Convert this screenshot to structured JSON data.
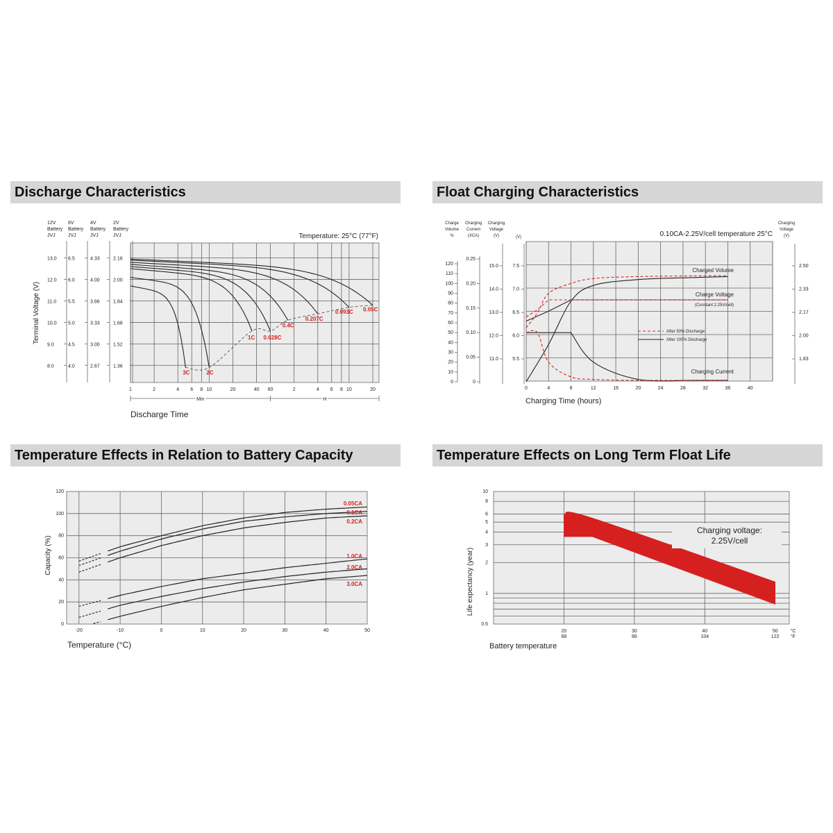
{
  "colors": {
    "grid_bg": "#ececec",
    "grid_line": "#666666",
    "curve": "#222222",
    "red": "#d61f1f",
    "header_bg": "#d6d6d6"
  },
  "discharge": {
    "title": "Discharge Characteristics",
    "chart_data": {
      "type": "line",
      "title": "Discharge Characteristics",
      "temperature_note": "Temperature: 25°C (77°F)",
      "ylabel": "Terminal Voltage (V)",
      "xlabel": "Discharge Time",
      "x_scale": "log",
      "x_unit_labels": {
        "min": "Min",
        "h": "H"
      },
      "x_ticks_min": [
        "1",
        "2",
        "4",
        "6",
        "8",
        "10",
        "20",
        "40",
        "60"
      ],
      "x_ticks_h": [
        "2",
        "4",
        "6",
        "8",
        "10",
        "20"
      ],
      "y_axes": [
        {
          "header": [
            "12V",
            "Battery",
            "JVJ"
          ],
          "ticks": [
            "13.0",
            "12.0",
            "11.0",
            "10.0",
            "9.0",
            "8.0"
          ]
        },
        {
          "header": [
            "6V",
            "Battery",
            "JVJ"
          ],
          "ticks": [
            "6.5",
            "6.0",
            "5.5",
            "5.0",
            "4.5",
            "4.0"
          ]
        },
        {
          "header": [
            "4V",
            "Battery",
            "JVJ"
          ],
          "ticks": [
            "4.33",
            "4.00",
            "3.66",
            "3.33",
            "3.00",
            "2.67"
          ]
        },
        {
          "header": [
            "2V",
            "Battery",
            "JVJ"
          ],
          "ticks": [
            "2.16",
            "2.00",
            "1.84",
            "1.68",
            "1.52",
            "1.36"
          ]
        }
      ],
      "series": [
        {
          "name": "3C",
          "end_minutes": 5,
          "start_v": 11.7,
          "cutoff_v": 7.9
        },
        {
          "name": "2C",
          "end_minutes": 10,
          "start_v": 12.1,
          "cutoff_v": 7.9
        },
        {
          "name": "1C",
          "end_minutes": 35,
          "start_v": 12.5,
          "cutoff_v": 9.6
        },
        {
          "name": "0.628C",
          "end_minutes": 60,
          "start_v": 12.6,
          "cutoff_v": 9.6
        },
        {
          "name": "0.4C",
          "end_minutes": 100,
          "start_v": 12.7,
          "cutoff_v": 10.1
        },
        {
          "name": "0.207C",
          "end_minutes": 240,
          "start_v": 12.8,
          "cutoff_v": 10.4
        },
        {
          "name": "0.093C",
          "end_minutes": 600,
          "start_v": 12.9,
          "cutoff_v": 10.7
        },
        {
          "name": "0.05C",
          "end_minutes": 1200,
          "start_v": 12.95,
          "cutoff_v": 10.8
        }
      ]
    }
  },
  "float_charging": {
    "title": "Float Charging Characteristics",
    "chart_data": {
      "type": "line",
      "title": "Float Charging Characteristics",
      "note": "0.10CA-2.25V/cell  temperature 25°C",
      "xlabel": "Charging Time (hours)",
      "x_ticks": [
        "0",
        "4",
        "8",
        "12",
        "16",
        "20",
        "24",
        "28",
        "32",
        "36",
        "40"
      ],
      "xlim": [
        0,
        44
      ],
      "axis_headers": {
        "charge_volume": [
          "Charge",
          "Volume",
          "%"
        ],
        "charging_current": [
          "Charging",
          "Current",
          "(XCA)"
        ],
        "charging_voltage": [
          "Charging",
          "Voltage",
          "(V)"
        ],
        "extra_v": "(V)",
        "right": [
          "Charging",
          "Voltage",
          "(V)"
        ]
      },
      "charge_volume_ticks": [
        "120",
        "110",
        "100",
        "90",
        "80",
        "70",
        "60",
        "50",
        "40",
        "30",
        "20",
        "10",
        "0"
      ],
      "current_ticks": [
        "0.25",
        "0.20",
        "0.15",
        "0.10",
        "0.05",
        "0"
      ],
      "voltage_ticks_12v": [
        "15.0",
        "14.0",
        "13.0",
        "12.0",
        "11.0"
      ],
      "voltage_ticks_6v": [
        "7.5",
        "7.0",
        "6.5",
        "6.0",
        "5.5"
      ],
      "right_ticks": [
        "2.50",
        "2.33",
        "2.17",
        "2.00",
        "1.83"
      ],
      "series_labels": {
        "charged_volume": "Charged Volume",
        "charge_voltage": "Charge Voltage",
        "constant": "(Constant 2.25V/cell)",
        "charging_current": "Charging Current"
      },
      "legend": [
        {
          "name": "After  50% Discharge",
          "style": "dashed-red"
        },
        {
          "name": "After 100% Discharge",
          "style": "solid-black"
        }
      ],
      "series": [
        {
          "name": "After 100% Discharge",
          "hours": [
            0,
            4,
            8,
            12,
            20,
            30,
            36
          ],
          "charged_volume_pct": [
            0,
            38,
            82,
            98,
            104,
            106,
            107
          ],
          "voltage_v_per_cell": [
            2.1,
            2.17,
            2.25,
            2.25,
            2.25,
            2.25,
            2.25
          ],
          "current_xca": [
            0.1,
            0.1,
            0.1,
            0.04,
            0.005,
            0.003,
            0.003
          ]
        },
        {
          "name": "After  50% Discharge",
          "hours": [
            0,
            2,
            4,
            8,
            12,
            20,
            36
          ],
          "charged_volume_pct": [
            55,
            70,
            90,
            100,
            105,
            107,
            108
          ],
          "voltage_v_per_cell": [
            2.13,
            2.18,
            2.25,
            2.25,
            2.25,
            2.25,
            2.25
          ],
          "current_xca": [
            0.1,
            0.1,
            0.04,
            0.01,
            0.005,
            0.003,
            0.003
          ]
        }
      ]
    }
  },
  "temp_capacity": {
    "title": "Temperature Effects in Relation to Battery Capacity",
    "chart_data": {
      "type": "line",
      "title": "Temperature Effects in Relation to Battery Capacity",
      "xlabel": "Temperature (°C)",
      "ylabel": "Capacity (%)",
      "xlim": [
        -20,
        50
      ],
      "ylim": [
        0,
        120
      ],
      "x_ticks": [
        "-20",
        "-10",
        "0",
        "10",
        "20",
        "30",
        "40",
        "50"
      ],
      "y_ticks": [
        "120",
        "100",
        "80",
        "60",
        "40",
        "20",
        "0"
      ],
      "x": [
        -20,
        -10,
        0,
        10,
        20,
        30,
        40,
        50
      ],
      "series": [
        {
          "name": "0.05CA",
          "values": [
            57,
            70,
            80,
            89,
            96,
            101,
            104,
            106
          ]
        },
        {
          "name": "0.1CA",
          "values": [
            53,
            66,
            77,
            86,
            93,
            97,
            100,
            102
          ]
        },
        {
          "name": "0.2CA",
          "values": [
            47,
            60,
            71,
            80,
            87,
            92,
            96,
            98
          ]
        },
        {
          "name": "1.0CA",
          "values": [
            16,
            26,
            34,
            41,
            46,
            51,
            55,
            59
          ]
        },
        {
          "name": "2.0CA",
          "values": [
            6,
            17,
            25,
            32,
            38,
            43,
            47,
            50
          ]
        },
        {
          "name": "3.0CA",
          "values": [
            -3,
            7,
            16,
            24,
            31,
            36,
            41,
            44
          ]
        }
      ]
    }
  },
  "float_life": {
    "title": "Temperature Effects on Long Term Float Life",
    "chart_data": {
      "type": "area",
      "title": "Temperature Effects on Long Term Float Life",
      "xlabel": "Battery temperature",
      "ylabel": "Life expectancy (year)",
      "y_scale": "log",
      "ylim": [
        0.5,
        10
      ],
      "xlim": [
        10,
        52
      ],
      "y_ticks": [
        "10",
        "8",
        "6",
        "5",
        "4",
        "3",
        "2",
        "1",
        "0.5"
      ],
      "x_ticks_c": [
        "20",
        "30",
        "40",
        "50"
      ],
      "x_ticks_f": [
        "68",
        "86",
        "104",
        "122"
      ],
      "unit_c": "°C",
      "unit_f": "°F",
      "annotation": [
        "Charging voltage:",
        "2.25V/cell"
      ],
      "band": {
        "x": [
          20,
          24,
          50
        ],
        "upper": [
          6,
          5.5,
          1.3
        ],
        "lower": [
          3.6,
          3.6,
          0.78
        ]
      }
    }
  }
}
